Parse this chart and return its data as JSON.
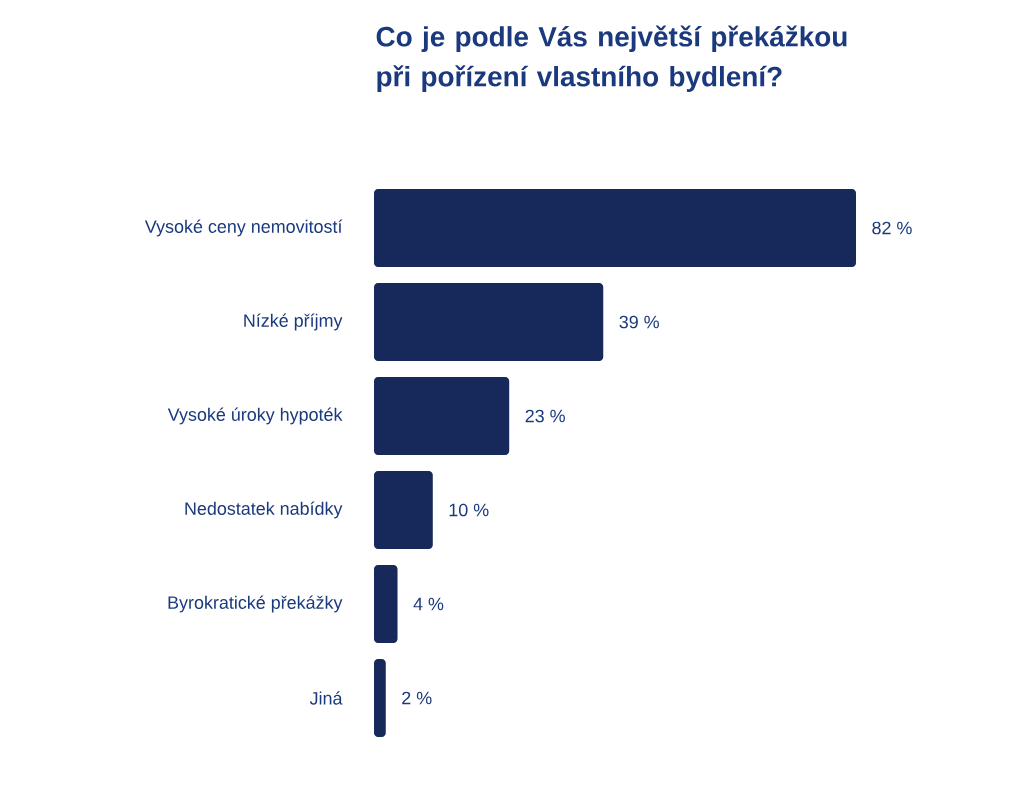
{
  "chart_data": {
    "type": "bar",
    "orientation": "horizontal",
    "title": "Co je podle Vás největší překážkou při pořízení vlastního bydlení?",
    "categories": [
      "Vysoké ceny nemovitostí",
      "Nízké příjmy",
      "Vysoké úroky hypoték",
      "Nedostatek nabídky",
      "Byrokratické překážky",
      "Jiná"
    ],
    "values": [
      82,
      39,
      23,
      10,
      4,
      2
    ],
    "value_labels": [
      "82 %",
      "39 %",
      "23 %",
      "10 %",
      "4 %",
      "2 %"
    ],
    "color": "#17285a"
  }
}
